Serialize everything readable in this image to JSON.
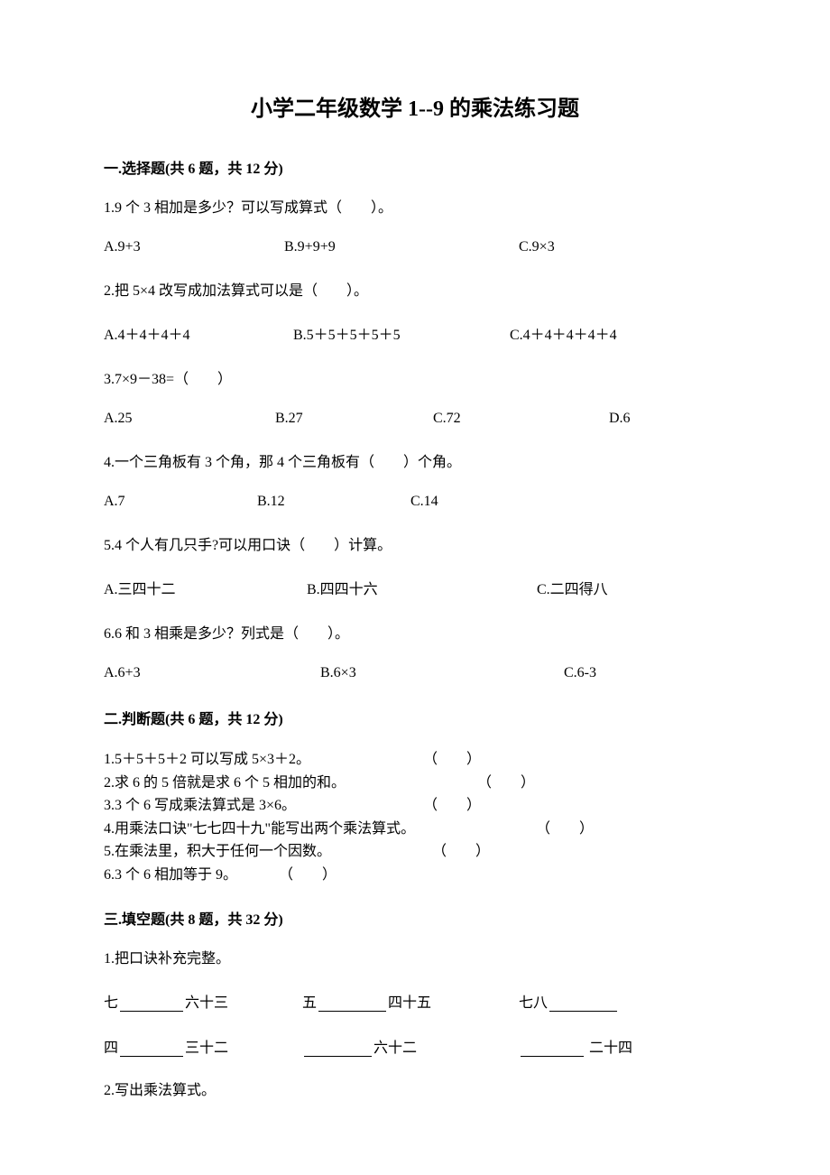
{
  "title": "小学二年级数学 1--9 的乘法练习题",
  "section1": {
    "header": "一.选择题(共 6 题，共 12 分)",
    "q1": {
      "text": "1.9 个 3 相加是多少？可以写成算式（　　）。",
      "a": "A.9+3",
      "b": "B.9+9+9",
      "c": "C.9×3"
    },
    "q2": {
      "text": "2.把 5×4 改写成加法算式可以是（　　）。",
      "a": "A.4＋4＋4＋4",
      "b": "B.5＋5＋5＋5＋5",
      "c": "C.4＋4＋4＋4＋4"
    },
    "q3": {
      "text": "3.7×9－38=（　　）",
      "a": "A.25",
      "b": "B.27",
      "c": "C.72",
      "d": "D.6"
    },
    "q4": {
      "text": "4.一个三角板有 3 个角，那 4 个三角板有（　　）个角。",
      "a": "A.7",
      "b": "B.12",
      "c": "C.14"
    },
    "q5": {
      "text": "5.4 个人有几只手?可以用口诀（　　）计算。",
      "a": "A.三四十二",
      "b": "B.四四十六",
      "c": "C.二四得八"
    },
    "q6": {
      "text": "6.6 和 3 相乘是多少？列式是（　　）。",
      "a": "A.6+3",
      "b": "B.6×3",
      "c": "C.6-3"
    }
  },
  "section2": {
    "header": "二.判断题(共 6 题，共 12 分)",
    "t1": "1.5＋5＋5＋2 可以写成 5×3＋2。",
    "t2": "2.求 6 的 5 倍就是求 6 个 5 相加的和。",
    "t3": "3.3 个 6 写成乘法算式是 3×6。",
    "t4": "4.用乘法口诀\"七七四十九\"能写出两个乘法算式。",
    "t5": "5.在乘法里，积大于任何一个因数。",
    "t6": "6.3 个 6 相加等于 9。",
    "paren": "（　　）"
  },
  "section3": {
    "header": "三.填空题(共 8 题，共 32 分)",
    "q1": {
      "text": "1.把口诀补充完整。",
      "r1a_pre": "七",
      "r1a_post": "六十三",
      "r1b_pre": "五",
      "r1b_post": "四十五",
      "r1c_pre": "七八",
      "r2a_pre": "四",
      "r2a_post": "三十二",
      "r2b_post": "六十二",
      "r2c_post": " 二十四"
    },
    "q2": {
      "text": "2.写出乘法算式。"
    }
  }
}
